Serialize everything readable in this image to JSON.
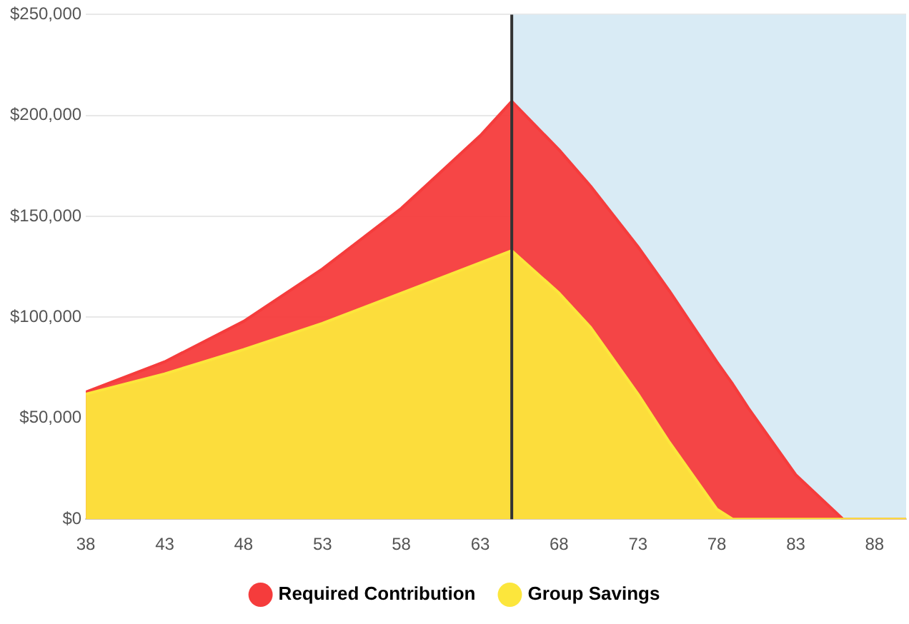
{
  "chart_data": {
    "type": "area",
    "x": [
      38,
      43,
      48,
      53,
      58,
      63,
      65,
      68,
      70,
      73,
      75,
      78,
      79,
      80,
      83,
      86,
      90
    ],
    "series": [
      {
        "name": "Required Contribution",
        "color": "#f53c3c",
        "values": [
          63000,
          78000,
          98000,
          124000,
          154000,
          190000,
          207000,
          183000,
          165000,
          135000,
          113000,
          78000,
          67000,
          55000,
          22000,
          0,
          0
        ]
      },
      {
        "name": "Group Savings",
        "color": "#fce63c",
        "values": [
          62000,
          72000,
          84000,
          97000,
          112000,
          127000,
          133000,
          112000,
          95000,
          62000,
          38000,
          5000,
          0,
          0,
          0,
          0,
          0
        ]
      }
    ],
    "xlim": [
      38,
      90
    ],
    "xticks": [
      38,
      43,
      48,
      53,
      58,
      63,
      68,
      73,
      78,
      83,
      88
    ],
    "ylim": [
      0,
      250000
    ],
    "yticks": [
      {
        "value": 0,
        "label": "$0"
      },
      {
        "value": 50000,
        "label": "$50,000"
      },
      {
        "value": 100000,
        "label": "$100,000"
      },
      {
        "value": 150000,
        "label": "$150,000"
      },
      {
        "value": 200000,
        "label": "$200,000"
      },
      {
        "value": 250000,
        "label": "$250,000"
      }
    ],
    "grid": "y",
    "legend": "bottom",
    "marker": "none",
    "ref_lines": [
      {
        "axis": "x",
        "value": 65,
        "color": "#333333"
      }
    ],
    "bands": [
      {
        "axis": "x",
        "from": 65,
        "to": 90,
        "color": "#d9ebf5"
      }
    ]
  }
}
